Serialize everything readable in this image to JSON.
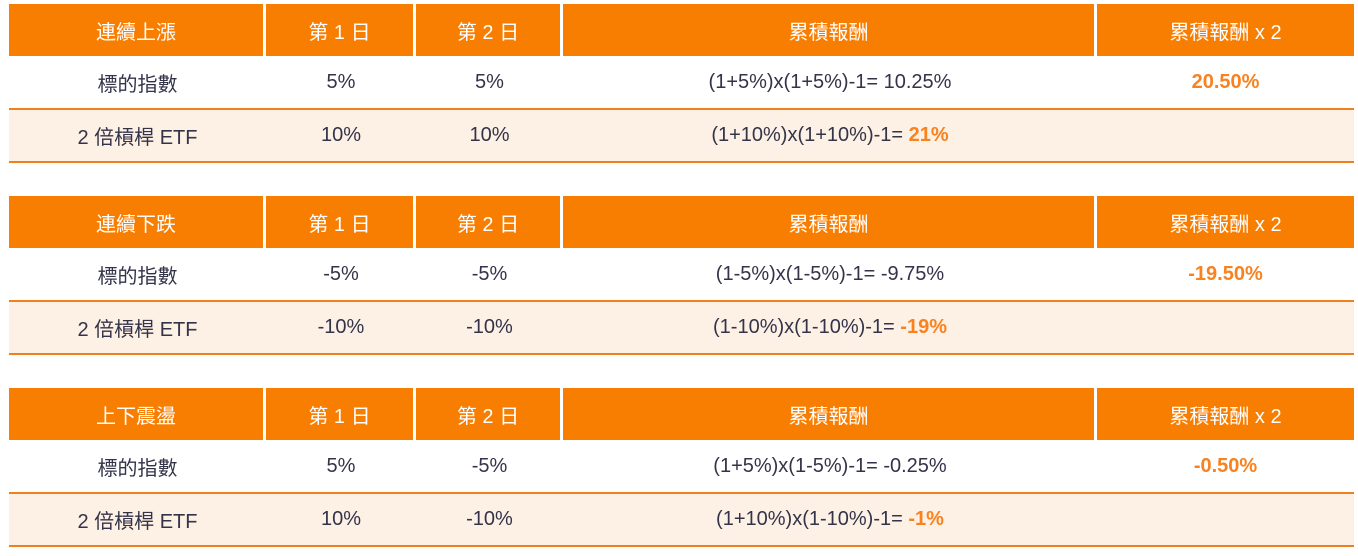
{
  "colors": {
    "header_bg": "#F87E02",
    "accent_text": "#F8821F",
    "alt_row_bg": "#FDF0E4",
    "row_border": "#EF7F1F",
    "body_text": "#333349",
    "header_text": "#ffffff"
  },
  "chart_data": [
    {
      "type": "table",
      "title": "連續上漲",
      "columns": [
        "第 1 日",
        "第 2 日",
        "累積報酬",
        "累積報酬 x 2"
      ],
      "rows": [
        {
          "label": "標的指數",
          "day1": "5%",
          "day2": "5%",
          "formula": "(1+5%)x(1+5%)-1= 10.25%",
          "formula_highlight": "",
          "cumulative_2x": "20.50%"
        },
        {
          "label": "2 倍槓桿 ETF",
          "day1": "10%",
          "day2": "10%",
          "formula": "(1+10%)x(1+10%)-1= ",
          "formula_highlight": "21%",
          "cumulative_2x": ""
        }
      ]
    },
    {
      "type": "table",
      "title": "連續下跌",
      "columns": [
        "第 1 日",
        "第 2 日",
        "累積報酬",
        "累積報酬 x 2"
      ],
      "rows": [
        {
          "label": "標的指數",
          "day1": "-5%",
          "day2": "-5%",
          "formula": "(1-5%)x(1-5%)-1= -9.75%",
          "formula_highlight": "",
          "cumulative_2x": "-19.50%"
        },
        {
          "label": "2 倍槓桿 ETF",
          "day1": "-10%",
          "day2": "-10%",
          "formula": "(1-10%)x(1-10%)-1= ",
          "formula_highlight": "-19%",
          "cumulative_2x": ""
        }
      ]
    },
    {
      "type": "table",
      "title": "上下震盪",
      "columns": [
        "第 1 日",
        "第 2 日",
        "累積報酬",
        "累積報酬 x 2"
      ],
      "rows": [
        {
          "label": "標的指數",
          "day1": "5%",
          "day2": "-5%",
          "formula": "(1+5%)x(1-5%)-1= -0.25%",
          "formula_highlight": "",
          "cumulative_2x": "-0.50%"
        },
        {
          "label": "2 倍槓桿 ETF",
          "day1": "10%",
          "day2": "-10%",
          "formula": "(1+10%)x(1-10%)-1= ",
          "formula_highlight": "-1%",
          "cumulative_2x": ""
        }
      ]
    }
  ]
}
